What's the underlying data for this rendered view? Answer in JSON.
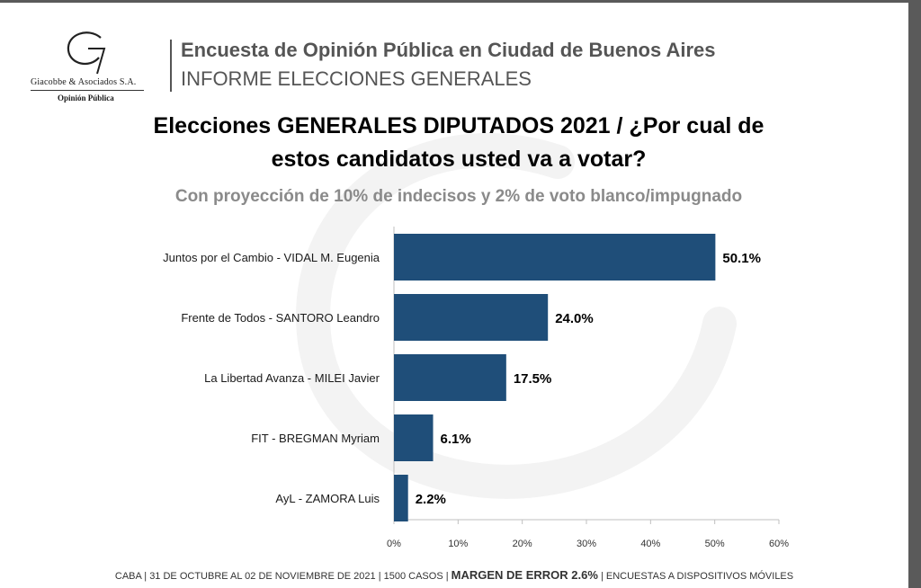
{
  "logo": {
    "company": "Giacobbe & Asociados S.A.",
    "subtitle": "Opinión Pública"
  },
  "header": {
    "title": "Encuesta de Opinión Pública en Ciudad de Buenos Aires",
    "subtitle": "INFORME ELECCIONES GENERALES"
  },
  "footer": {
    "left": "CABA | 31 DE OCTUBRE AL 02 DE NOVIEMBRE DE 2021 | 1500 CASOS |",
    "margin": "MARGEN DE ERROR 2.6%",
    "right": "| ENCUESTAS A DISPOSITIVOS MÓVILES"
  },
  "colors": {
    "bar": "#1f4e79",
    "header_text": "#555555",
    "subtitle_text": "#8a8a8a"
  },
  "chart_data": {
    "type": "bar",
    "orientation": "horizontal",
    "title": "Elecciones GENERALES DIPUTADOS 2021 / ¿Por cual de estos candidatos usted va a votar?",
    "subtitle": "Con proyección de 10% de indecisos y 2% de voto blanco/impugnado",
    "categories": [
      "Juntos por el Cambio - VIDAL M. Eugenia",
      "Frente de Todos - SANTORO Leandro",
      "La Libertad Avanza - MILEI Javier",
      "FIT - BREGMAN Myriam",
      "AyL - ZAMORA Luis"
    ],
    "values": [
      50.1,
      24.0,
      17.5,
      6.1,
      2.2
    ],
    "value_labels": [
      "50.1%",
      "24.0%",
      "17.5%",
      "6.1%",
      "2.2%"
    ],
    "xlim": [
      0,
      60
    ],
    "xticks": [
      "0%",
      "10%",
      "20%",
      "30%",
      "40%",
      "50%",
      "60%"
    ],
    "grid": false,
    "legend": "none"
  }
}
